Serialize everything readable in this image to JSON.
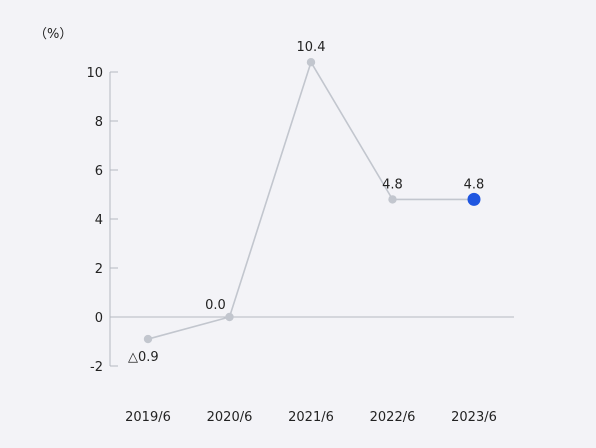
{
  "chart_data": {
    "type": "line",
    "unit_label": "（%）",
    "categories": [
      "2019/6",
      "2020/6",
      "2021/6",
      "2022/6",
      "2023/6"
    ],
    "series": [
      {
        "values": [
          -0.9,
          0.0,
          10.4,
          4.8,
          4.8
        ],
        "value_labels": [
          "△0.9",
          "0.0",
          "10.4",
          "4.8",
          "4.8"
        ]
      }
    ],
    "y_ticks": [
      "10",
      "8",
      "6",
      "4",
      "2",
      "0",
      "-2"
    ],
    "y_tick_values": [
      10,
      8,
      6,
      4,
      2,
      0,
      -2
    ],
    "ylim": [
      -2,
      10
    ],
    "grid": false,
    "highlight_index": 4,
    "colors": {
      "background": "#f3f3f7",
      "line": "#c2c6ce",
      "point": "#c2c6ce",
      "highlight_point": "#1f56e0",
      "axis": "#b4b8c0",
      "text": "#222222"
    }
  }
}
